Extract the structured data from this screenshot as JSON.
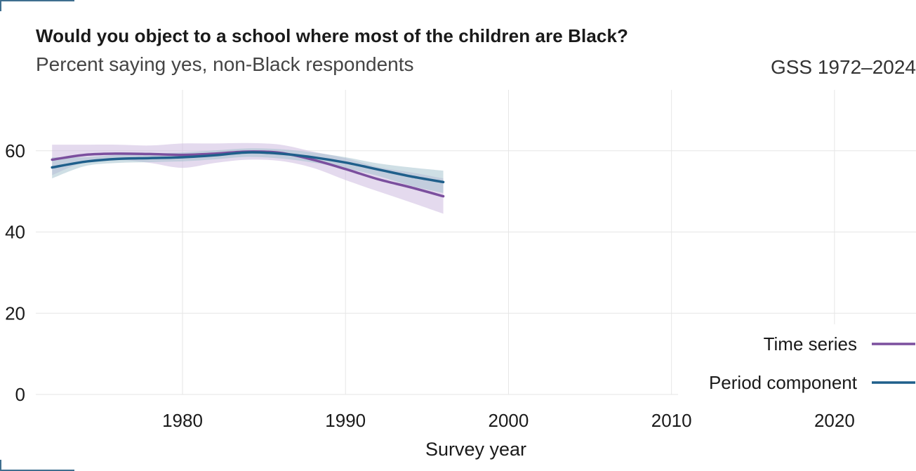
{
  "chart_data": {
    "type": "line",
    "title": "Would you object to a school where most of the children are Black?",
    "subtitle": "Percent saying yes, non-Black respondents",
    "source": "GSS 1972–2024",
    "xlabel": "Survey year",
    "ylabel": "",
    "xlim": [
      1971,
      2025
    ],
    "ylim": [
      0,
      75
    ],
    "x_ticks": [
      1980,
      1990,
      2000,
      2010,
      2020
    ],
    "y_ticks": [
      0,
      20,
      40,
      60
    ],
    "grid": true,
    "legend_position": "bottom-right",
    "series": [
      {
        "name": "Time series",
        "color": "#7b4f9e",
        "band_color": "#c9b6de",
        "x": [
          1972,
          1974,
          1976,
          1978,
          1980,
          1982,
          1984,
          1986,
          1988,
          1990,
          1992,
          1994,
          1996
        ],
        "y": [
          57.8,
          59.0,
          59.3,
          59.2,
          59.0,
          59.3,
          59.8,
          59.5,
          57.8,
          55.5,
          53.0,
          51.0,
          48.8
        ],
        "lower": [
          54.0,
          57.2,
          57.8,
          57.0,
          55.8,
          57.0,
          57.8,
          57.5,
          55.8,
          52.8,
          50.0,
          47.3,
          44.5
        ],
        "upper": [
          61.5,
          61.5,
          61.5,
          61.3,
          61.8,
          61.8,
          61.9,
          61.5,
          59.8,
          58.2,
          56.0,
          54.7,
          53.2
        ]
      },
      {
        "name": "Period component",
        "color": "#1f5f8b",
        "band_color": "#9fbfcc",
        "x": [
          1972,
          1974,
          1976,
          1978,
          1980,
          1982,
          1984,
          1986,
          1988,
          1990,
          1992,
          1994,
          1996
        ],
        "y": [
          55.9,
          57.3,
          58.0,
          58.2,
          58.4,
          58.9,
          59.6,
          59.3,
          58.4,
          57.1,
          55.4,
          53.7,
          52.3
        ],
        "lower": [
          53.2,
          56.2,
          57.0,
          57.2,
          57.4,
          57.9,
          58.5,
          58.1,
          57.1,
          55.7,
          53.8,
          51.4,
          49.6
        ],
        "upper": [
          58.4,
          58.4,
          59.0,
          59.3,
          59.6,
          60.1,
          60.6,
          60.4,
          59.6,
          58.4,
          56.9,
          55.9,
          55.1
        ]
      }
    ]
  }
}
